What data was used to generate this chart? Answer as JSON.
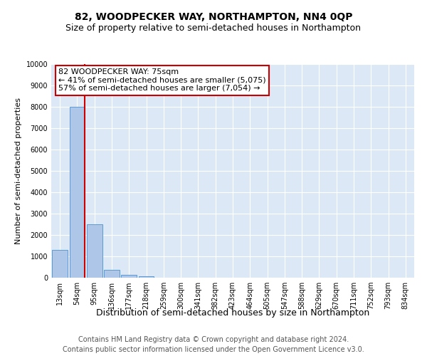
{
  "title": "82, WOODPECKER WAY, NORTHAMPTON, NN4 0QP",
  "subtitle": "Size of property relative to semi-detached houses in Northampton",
  "xlabel": "Distribution of semi-detached houses by size in Northampton",
  "ylabel": "Number of semi-detached properties",
  "categories": [
    "13sqm",
    "54sqm",
    "95sqm",
    "136sqm",
    "177sqm",
    "218sqm",
    "259sqm",
    "300sqm",
    "341sqm",
    "382sqm",
    "423sqm",
    "464sqm",
    "505sqm",
    "547sqm",
    "588sqm",
    "629sqm",
    "670sqm",
    "711sqm",
    "752sqm",
    "793sqm",
    "834sqm"
  ],
  "values": [
    1300,
    8000,
    2500,
    380,
    130,
    80,
    0,
    0,
    0,
    0,
    0,
    0,
    0,
    0,
    0,
    0,
    0,
    0,
    0,
    0,
    0
  ],
  "bar_color": "#aec6e8",
  "bar_edge_color": "#5b9bd5",
  "property_line_color": "#cc0000",
  "annotation_text": "82 WOODPECKER WAY: 75sqm\n← 41% of semi-detached houses are smaller (5,075)\n57% of semi-detached houses are larger (7,054) →",
  "annotation_box_color": "#ffffff",
  "annotation_box_edge": "#cc0000",
  "ylim": [
    0,
    10000
  ],
  "yticks": [
    0,
    1000,
    2000,
    3000,
    4000,
    5000,
    6000,
    7000,
    8000,
    9000,
    10000
  ],
  "footer_line1": "Contains HM Land Registry data © Crown copyright and database right 2024.",
  "footer_line2": "Contains public sector information licensed under the Open Government Licence v3.0.",
  "plot_bg_color": "#dce8f5",
  "title_fontsize": 10,
  "subtitle_fontsize": 9,
  "xlabel_fontsize": 9,
  "ylabel_fontsize": 8,
  "tick_fontsize": 7,
  "annotation_fontsize": 8,
  "footer_fontsize": 7
}
